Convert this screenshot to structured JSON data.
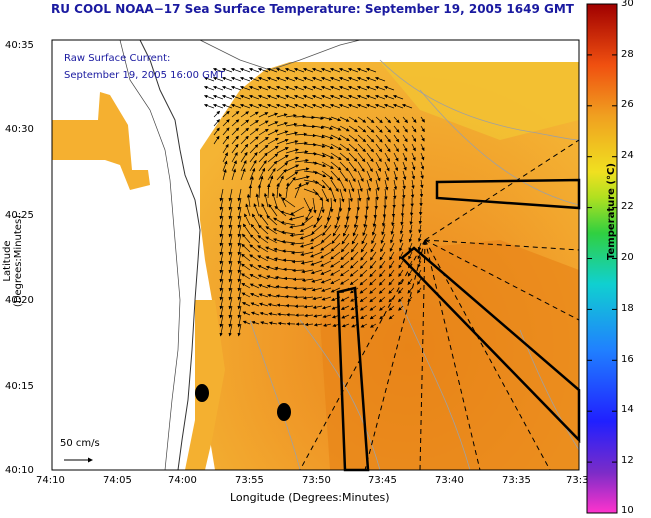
{
  "title": "RU COOL  NOAA−17  Sea Surface Temperature:  September 19, 2005 1649 GMT",
  "raw_current_label": "Raw Surface Current:",
  "raw_current_time": "September 19, 2005 16:00 GMT",
  "scale_label": "50 cm/s",
  "y_axis_label": "Latitude (Degrees:Minutes)",
  "x_axis_label": "Longitude (Degrees:Minutes)",
  "colorbar_label": "Temperature (°C)",
  "y_ticks": [
    "40:35",
    "40:30",
    "40:25",
    "40:20",
    "40:15",
    "40:10"
  ],
  "x_ticks": [
    "74:10",
    "74:05",
    "74:00",
    "73:55",
    "73:50",
    "73:45",
    "73:40",
    "73:35",
    "73:3"
  ],
  "colorbar_ticks": [
    "30",
    "28",
    "26",
    "24",
    "22",
    "20",
    "18",
    "16",
    "14",
    "12",
    "10"
  ],
  "colors": {
    "title": "#1a1aa0",
    "land": "#ffffff",
    "sst_warm": "#f0a030",
    "sst_mid": "#e88f20"
  }
}
